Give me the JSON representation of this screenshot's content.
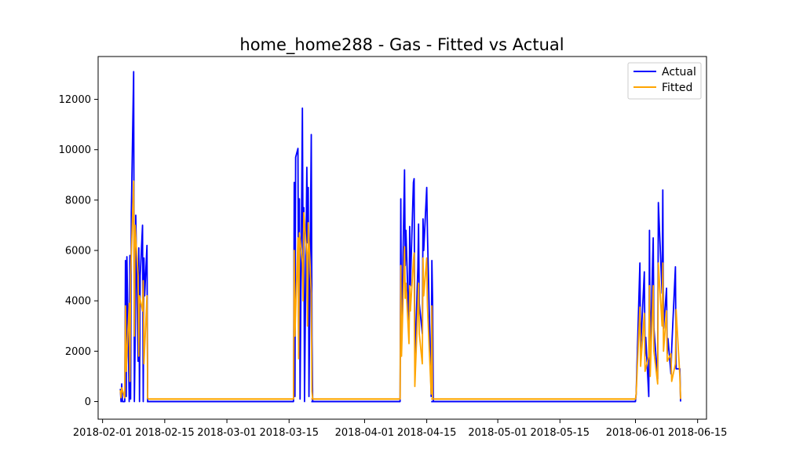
{
  "chart_data": {
    "type": "line",
    "title": "home_home288 - Gas - Fitted vs Actual",
    "xlabel": "",
    "ylabel": "",
    "xlim": [
      "2018-01-31",
      "2018-06-17"
    ],
    "ylim": [
      -700,
      13700
    ],
    "x_ticks": [
      "2018-02-01",
      "2018-02-15",
      "2018-03-01",
      "2018-03-15",
      "2018-04-01",
      "2018-04-15",
      "2018-05-01",
      "2018-05-15",
      "2018-06-01",
      "2018-06-15"
    ],
    "y_ticks": [
      0,
      2000,
      4000,
      6000,
      8000,
      10000,
      12000
    ],
    "grid": false,
    "legend_position": "top-right",
    "series": [
      {
        "name": "Actual",
        "color": "#0000ff",
        "points": [
          [
            "2018-02-05",
            500
          ],
          [
            "2018-02-05",
            0
          ],
          [
            "2018-02-05",
            700
          ],
          [
            "2018-02-05",
            0
          ],
          [
            "2018-02-06",
            0
          ],
          [
            "2018-02-06",
            5600
          ],
          [
            "2018-02-06",
            200
          ],
          [
            "2018-02-06",
            5750
          ],
          [
            "2018-02-07",
            0
          ],
          [
            "2018-02-07",
            5800
          ],
          [
            "2018-02-07",
            100
          ],
          [
            "2018-02-07",
            7500
          ],
          [
            "2018-02-08",
            13100
          ],
          [
            "2018-02-08",
            0
          ],
          [
            "2018-02-08",
            2100
          ],
          [
            "2018-02-08",
            7400
          ],
          [
            "2018-02-09",
            1600
          ],
          [
            "2018-02-09",
            6100
          ],
          [
            "2018-02-09",
            0
          ],
          [
            "2018-02-09",
            5000
          ],
          [
            "2018-02-10",
            7000
          ],
          [
            "2018-02-10",
            0
          ],
          [
            "2018-02-10",
            5700
          ],
          [
            "2018-02-10",
            4200
          ],
          [
            "2018-02-11",
            6200
          ],
          [
            "2018-02-11",
            0
          ],
          [
            "2018-02-11",
            0
          ],
          [
            "2018-03-16",
            0
          ],
          [
            "2018-03-16",
            8700
          ],
          [
            "2018-03-16",
            200
          ],
          [
            "2018-03-16",
            9700
          ],
          [
            "2018-03-17",
            10050
          ],
          [
            "2018-03-17",
            1800
          ],
          [
            "2018-03-17",
            8050
          ],
          [
            "2018-03-17",
            100
          ],
          [
            "2018-03-18",
            11650
          ],
          [
            "2018-03-18",
            5400
          ],
          [
            "2018-03-18",
            7700
          ],
          [
            "2018-03-18",
            0
          ],
          [
            "2018-03-19",
            9300
          ],
          [
            "2018-03-19",
            6300
          ],
          [
            "2018-03-19",
            8500
          ],
          [
            "2018-03-19",
            200
          ],
          [
            "2018-03-20",
            10600
          ],
          [
            "2018-03-20",
            2500
          ],
          [
            "2018-03-20",
            0
          ],
          [
            "2018-03-20",
            0
          ],
          [
            "2018-04-09",
            0
          ],
          [
            "2018-04-09",
            8050
          ],
          [
            "2018-04-09",
            2400
          ],
          [
            "2018-04-10",
            9200
          ],
          [
            "2018-04-10",
            5400
          ],
          [
            "2018-04-10",
            6800
          ],
          [
            "2018-04-11",
            2800
          ],
          [
            "2018-04-11",
            6950
          ],
          [
            "2018-04-11",
            4600
          ],
          [
            "2018-04-12",
            8700
          ],
          [
            "2018-04-12",
            8850
          ],
          [
            "2018-04-12",
            1500
          ],
          [
            "2018-04-13",
            5300
          ],
          [
            "2018-04-13",
            7050
          ],
          [
            "2018-04-13",
            3900
          ],
          [
            "2018-04-14",
            2700
          ],
          [
            "2018-04-14",
            7250
          ],
          [
            "2018-04-14",
            6000
          ],
          [
            "2018-04-15",
            8500
          ],
          [
            "2018-04-15",
            6700
          ],
          [
            "2018-04-16",
            200
          ],
          [
            "2018-04-16",
            5600
          ],
          [
            "2018-04-16",
            4000
          ],
          [
            "2018-04-16",
            0
          ],
          [
            "2018-06-01",
            0
          ],
          [
            "2018-06-01",
            300
          ],
          [
            "2018-06-02",
            5500
          ],
          [
            "2018-06-02",
            2100
          ],
          [
            "2018-06-03",
            5150
          ],
          [
            "2018-06-03",
            1800
          ],
          [
            "2018-06-03",
            2550
          ],
          [
            "2018-06-04",
            200
          ],
          [
            "2018-06-04",
            6800
          ],
          [
            "2018-06-04",
            1700
          ],
          [
            "2018-06-05",
            6500
          ],
          [
            "2018-06-05",
            2900
          ],
          [
            "2018-06-06",
            900
          ],
          [
            "2018-06-06",
            7900
          ],
          [
            "2018-06-07",
            4300
          ],
          [
            "2018-06-07",
            8400
          ],
          [
            "2018-06-07",
            2900
          ],
          [
            "2018-06-08",
            4500
          ],
          [
            "2018-06-08",
            1900
          ],
          [
            "2018-06-08",
            2500
          ],
          [
            "2018-06-09",
            1100
          ],
          [
            "2018-06-09",
            2100
          ],
          [
            "2018-06-10",
            5350
          ],
          [
            "2018-06-10",
            1300
          ],
          [
            "2018-06-11",
            1300
          ],
          [
            "2018-06-11",
            0
          ]
        ]
      },
      {
        "name": "Fitted",
        "color": "#ffa500",
        "points": [
          [
            "2018-02-05",
            450
          ],
          [
            "2018-02-05",
            150
          ],
          [
            "2018-02-05",
            550
          ],
          [
            "2018-02-06",
            150
          ],
          [
            "2018-02-06",
            3800
          ],
          [
            "2018-02-06",
            1200
          ],
          [
            "2018-02-07",
            3900
          ],
          [
            "2018-02-07",
            800
          ],
          [
            "2018-02-07",
            5000
          ],
          [
            "2018-02-08",
            8750
          ],
          [
            "2018-02-08",
            2600
          ],
          [
            "2018-02-08",
            7000
          ],
          [
            "2018-02-09",
            5000
          ],
          [
            "2018-02-09",
            1800
          ],
          [
            "2018-02-09",
            4200
          ],
          [
            "2018-02-10",
            3600
          ],
          [
            "2018-02-10",
            4800
          ],
          [
            "2018-02-10",
            1500
          ],
          [
            "2018-02-11",
            4200
          ],
          [
            "2018-02-11",
            150
          ],
          [
            "2018-02-11",
            100
          ],
          [
            "2018-03-16",
            100
          ],
          [
            "2018-03-16",
            6000
          ],
          [
            "2018-03-16",
            2600
          ],
          [
            "2018-03-17",
            6500
          ],
          [
            "2018-03-17",
            1700
          ],
          [
            "2018-03-17",
            6700
          ],
          [
            "2018-03-18",
            5500
          ],
          [
            "2018-03-18",
            4000
          ],
          [
            "2018-03-18",
            7500
          ],
          [
            "2018-03-19",
            5800
          ],
          [
            "2018-03-19",
            3000
          ],
          [
            "2018-03-19",
            7100
          ],
          [
            "2018-03-20",
            4300
          ],
          [
            "2018-03-20",
            400
          ],
          [
            "2018-03-20",
            100
          ],
          [
            "2018-04-09",
            100
          ],
          [
            "2018-04-09",
            5400
          ],
          [
            "2018-04-09",
            1800
          ],
          [
            "2018-04-10",
            6150
          ],
          [
            "2018-04-10",
            4100
          ],
          [
            "2018-04-10",
            4700
          ],
          [
            "2018-04-11",
            2300
          ],
          [
            "2018-04-11",
            4600
          ],
          [
            "2018-04-11",
            3600
          ],
          [
            "2018-04-12",
            5600
          ],
          [
            "2018-04-12",
            5900
          ],
          [
            "2018-04-12",
            600
          ],
          [
            "2018-04-13",
            3800
          ],
          [
            "2018-04-13",
            4700
          ],
          [
            "2018-04-13",
            2700
          ],
          [
            "2018-04-14",
            1500
          ],
          [
            "2018-04-14",
            5700
          ],
          [
            "2018-04-14",
            4200
          ],
          [
            "2018-04-15",
            5700
          ],
          [
            "2018-04-15",
            3800
          ],
          [
            "2018-04-16",
            300
          ],
          [
            "2018-04-16",
            3800
          ],
          [
            "2018-04-16",
            100
          ],
          [
            "2018-06-01",
            100
          ],
          [
            "2018-06-01",
            300
          ],
          [
            "2018-06-02",
            3750
          ],
          [
            "2018-06-02",
            1400
          ],
          [
            "2018-06-03",
            3500
          ],
          [
            "2018-06-03",
            1200
          ],
          [
            "2018-06-04",
            1800
          ],
          [
            "2018-06-04",
            4600
          ],
          [
            "2018-06-04",
            1000
          ],
          [
            "2018-06-05",
            4600
          ],
          [
            "2018-06-05",
            2000
          ],
          [
            "2018-06-06",
            700
          ],
          [
            "2018-06-06",
            5500
          ],
          [
            "2018-06-07",
            3000
          ],
          [
            "2018-06-07",
            5500
          ],
          [
            "2018-06-07",
            2000
          ],
          [
            "2018-06-08",
            3600
          ],
          [
            "2018-06-08",
            1600
          ],
          [
            "2018-06-09",
            1900
          ],
          [
            "2018-06-09",
            800
          ],
          [
            "2018-06-10",
            1500
          ],
          [
            "2018-06-10",
            3650
          ],
          [
            "2018-06-11",
            1000
          ],
          [
            "2018-06-11",
            100
          ]
        ]
      }
    ],
    "baseline_segments": [
      {
        "series": "Fitted",
        "from": "2018-02-11",
        "to": "2018-03-16",
        "value": 100
      },
      {
        "series": "Fitted",
        "from": "2018-03-20",
        "to": "2018-04-09",
        "value": 100
      },
      {
        "series": "Fitted",
        "from": "2018-04-16",
        "to": "2018-06-01",
        "value": 100
      },
      {
        "series": "Actual",
        "from": "2018-02-11",
        "to": "2018-03-16",
        "value": 0
      },
      {
        "series": "Actual",
        "from": "2018-03-20",
        "to": "2018-04-09",
        "value": 0
      },
      {
        "series": "Actual",
        "from": "2018-04-16",
        "to": "2018-06-01",
        "value": 0
      }
    ]
  }
}
